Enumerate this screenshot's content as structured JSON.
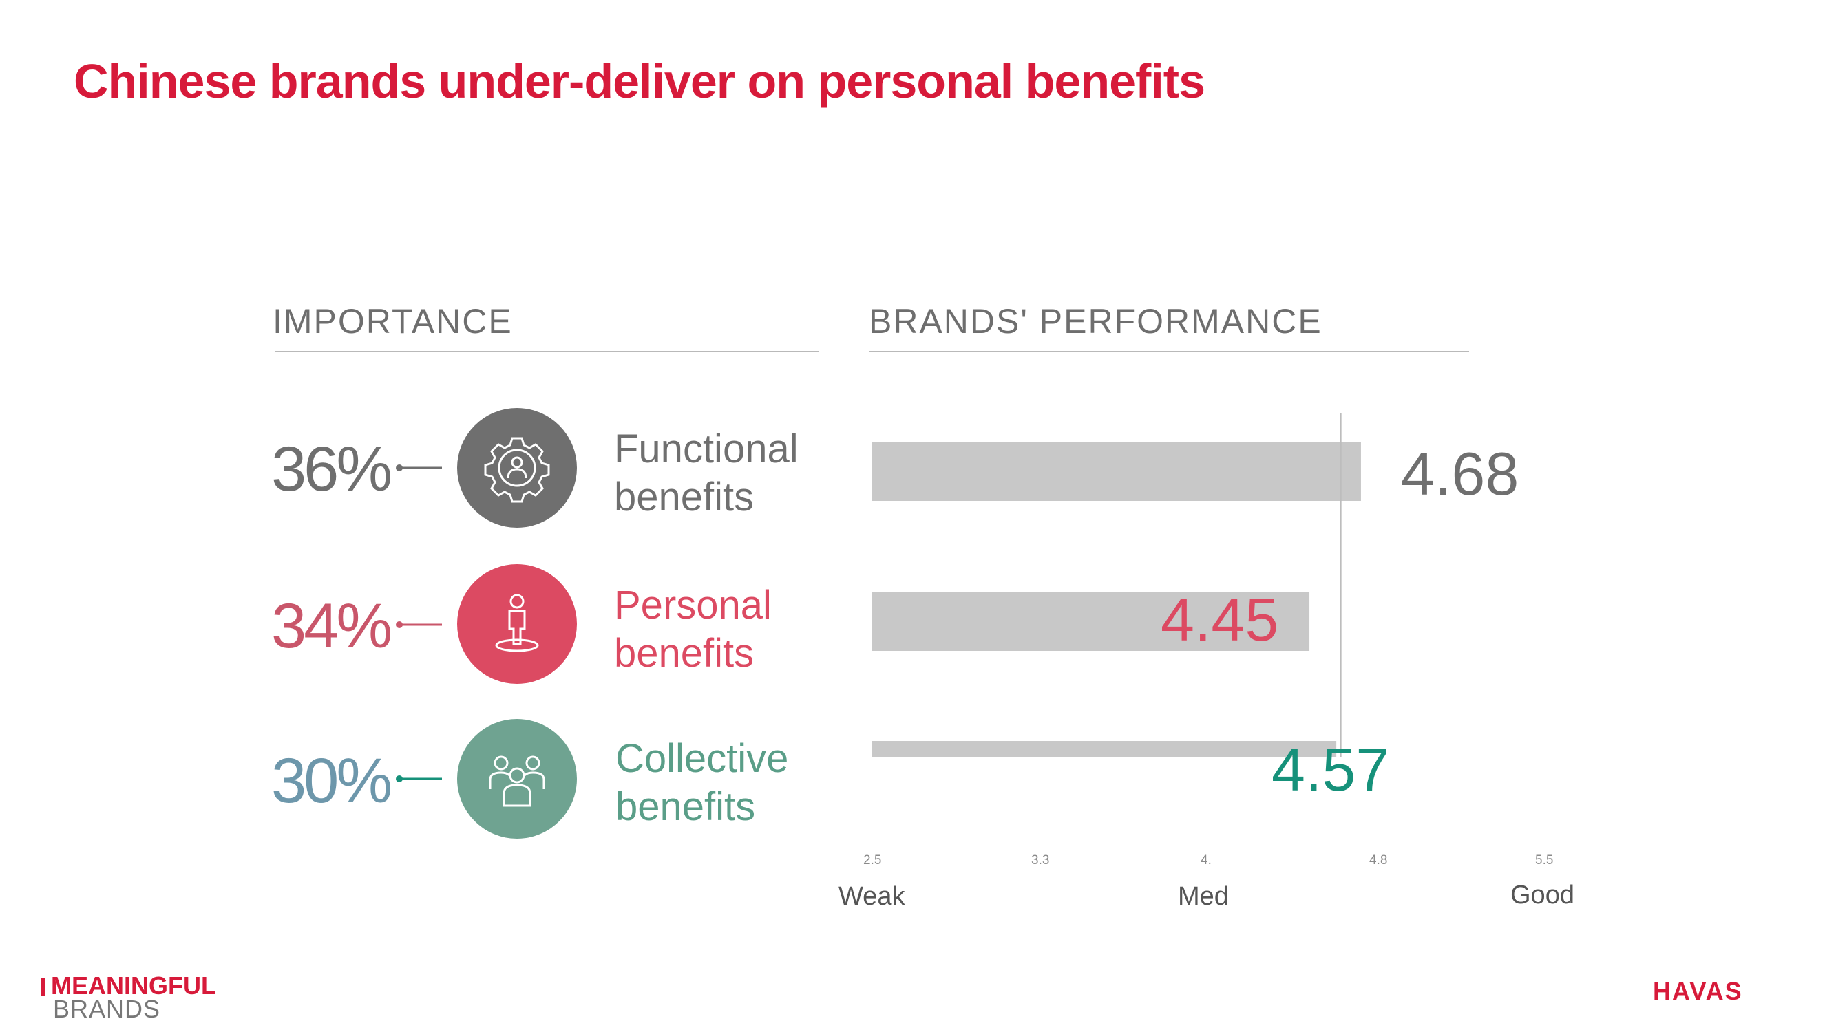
{
  "title": "Chinese brands under-deliver on personal benefits",
  "importance_heading": "IMPORTANCE",
  "performance_heading": "BRANDS' PERFORMANCE",
  "colors": {
    "accent_red": "#d71a3a",
    "functional": "#6f6f6f",
    "personal": "#dc4a62",
    "personal_pct": "#c9566a",
    "collective": "#6fa391",
    "collective_label": "#5a9e88",
    "collective_pct": "#6d97ab",
    "collective_value": "#16917a",
    "bar": "#c8c8c8"
  },
  "rows": [
    {
      "pct": "36%",
      "label_line1": "Functional",
      "label_line2": "benefits",
      "value_text": "4.68",
      "icon": "gear-person-icon"
    },
    {
      "pct": "34%",
      "label_line1": "Personal",
      "label_line2": "benefits",
      "value_text": "4.45",
      "icon": "person-standing-icon"
    },
    {
      "pct": "30%",
      "label_line1": "Collective",
      "label_line2": "benefits",
      "value_text": "4.57",
      "icon": "group-icon"
    }
  ],
  "scale": {
    "ticks": [
      "2.5",
      "3.3",
      "4.",
      "4.8",
      "5.5"
    ],
    "words": [
      "Weak",
      "Med",
      "Good"
    ]
  },
  "chart_data": {
    "type": "bar",
    "orientation": "horizontal",
    "categories": [
      "Functional benefits",
      "Personal benefits",
      "Collective benefits"
    ],
    "values": [
      4.68,
      4.45,
      4.57
    ],
    "importance": [
      36,
      34,
      30
    ],
    "xlim": [
      2.5,
      5.5
    ],
    "reference_line": 4.59
  },
  "footer": {
    "logo_top": "MEANINGFUL",
    "logo_bottom": "BRANDS",
    "havas": "HAVAS"
  }
}
